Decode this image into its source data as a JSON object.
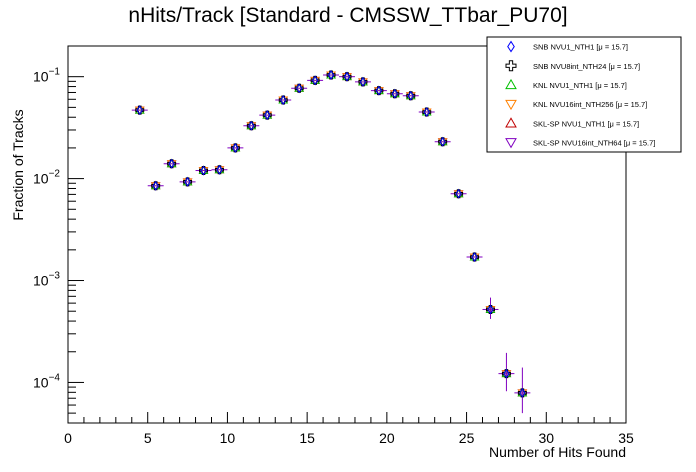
{
  "chart_data": {
    "type": "scatter",
    "title": "nHits/Track [Standard - CMSSW_TTbar_PU70]",
    "xlabel": "Number of Hits Found",
    "ylabel": "Fraction of Tracks",
    "xlim": [
      0,
      35
    ],
    "ylim": [
      4e-05,
      0.2
    ],
    "yscale": "log",
    "x_ticks": [
      "0",
      "5",
      "10",
      "15",
      "20",
      "25",
      "30",
      "35"
    ],
    "y_ticks": [
      {
        "value": 0.0001,
        "mantissa": "10",
        "exponent": "−4"
      },
      {
        "value": 0.001,
        "mantissa": "10",
        "exponent": "−3"
      },
      {
        "value": 0.01,
        "mantissa": "10",
        "exponent": "−2"
      },
      {
        "value": 0.1,
        "mantissa": "10",
        "exponent": "−1"
      }
    ],
    "legend_position": "top-right",
    "series": [
      {
        "name": "SNB NVU1_NTH1 [μ = 15.7]",
        "color": "#0000ff",
        "marker": "diamond-open"
      },
      {
        "name": "SNB NVU8int_NTH24 [μ = 15.7]",
        "color": "#000000",
        "marker": "cross-open"
      },
      {
        "name": "KNL NVU1_NTH1 [μ = 15.7]",
        "color": "#00c000",
        "marker": "triangle-up-open"
      },
      {
        "name": "KNL NVU16int_NTH256 [μ = 15.7]",
        "color": "#ff8000",
        "marker": "triangle-down-open"
      },
      {
        "name": "SKL-SP NVU1_NTH1 [μ = 15.7]",
        "color": "#c00000",
        "marker": "triangle-up-open"
      },
      {
        "name": "SKL-SP NVU16int_NTH64 [μ = 15.7]",
        "color": "#8000c0",
        "marker": "triangle-down-open"
      }
    ],
    "points": [
      {
        "x": 4.5,
        "y": 0.047
      },
      {
        "x": 5.5,
        "y": 0.0085
      },
      {
        "x": 6.5,
        "y": 0.014
      },
      {
        "x": 7.5,
        "y": 0.0093
      },
      {
        "x": 8.5,
        "y": 0.012
      },
      {
        "x": 9.5,
        "y": 0.0122
      },
      {
        "x": 10.5,
        "y": 0.02
      },
      {
        "x": 11.5,
        "y": 0.033
      },
      {
        "x": 12.5,
        "y": 0.042
      },
      {
        "x": 13.5,
        "y": 0.059
      },
      {
        "x": 14.5,
        "y": 0.077
      },
      {
        "x": 15.5,
        "y": 0.092
      },
      {
        "x": 16.5,
        "y": 0.104
      },
      {
        "x": 17.5,
        "y": 0.1
      },
      {
        "x": 18.5,
        "y": 0.089
      },
      {
        "x": 19.5,
        "y": 0.073
      },
      {
        "x": 20.5,
        "y": 0.068
      },
      {
        "x": 21.5,
        "y": 0.065
      },
      {
        "x": 22.5,
        "y": 0.045
      },
      {
        "x": 23.5,
        "y": 0.023
      },
      {
        "x": 24.5,
        "y": 0.0071
      },
      {
        "x": 25.5,
        "y": 0.0017
      },
      {
        "x": 26.5,
        "y": 0.00052,
        "err_lo": 0.00042,
        "err_hi": 0.00068
      },
      {
        "x": 27.5,
        "y": 0.000122,
        "err_lo": 8.2e-05,
        "err_hi": 0.000195
      },
      {
        "x": 28.5,
        "y": 7.9e-05,
        "err_lo": 5e-05,
        "err_hi": 0.00014
      }
    ]
  }
}
